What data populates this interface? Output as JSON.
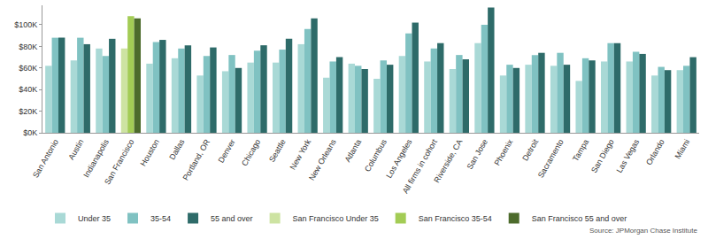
{
  "chart_data": {
    "type": "bar",
    "categories": [
      "San Antonio",
      "Austin",
      "Indianapolis",
      "San Francisco",
      "Houston",
      "Dallas",
      "Portland, OR",
      "Denver",
      "Chicago",
      "Seattle",
      "New York",
      "New Orleans",
      "Atlanta",
      "Columbus",
      "Los Angeles",
      "All firms in cohort",
      "Riverside, CA",
      "San Jose",
      "Phoenix",
      "Detroit",
      "Sacramento",
      "Tampa",
      "San Diego",
      "Las Vegas",
      "Orlando",
      "Miami"
    ],
    "series": [
      {
        "name": "Under 35",
        "color": "#a9d9d6",
        "values": [
          62,
          67,
          78,
          null,
          64,
          69,
          53,
          57,
          65,
          65,
          82,
          51,
          64,
          50,
          71,
          66,
          59,
          83,
          53,
          63,
          62,
          48,
          66,
          66,
          53,
          58
        ]
      },
      {
        "name": "35-54",
        "color": "#80c2c2",
        "values": [
          88,
          88,
          71,
          null,
          84,
          78,
          71,
          72,
          76,
          77,
          96,
          66,
          62,
          67,
          92,
          78,
          72,
          100,
          63,
          72,
          74,
          69,
          83,
          75,
          61,
          62
        ]
      },
      {
        "name": "55 and over",
        "color": "#2e6b69",
        "values": [
          88,
          82,
          87,
          null,
          86,
          81,
          79,
          60,
          81,
          87,
          106,
          70,
          59,
          63,
          102,
          83,
          68,
          116,
          60,
          74,
          63,
          67,
          83,
          73,
          58,
          70
        ]
      },
      {
        "name": "San Francisco Under 35",
        "color": "#cde3a2",
        "values": [
          null,
          null,
          null,
          78,
          null,
          null,
          null,
          null,
          null,
          null,
          null,
          null,
          null,
          null,
          null,
          null,
          null,
          null,
          null,
          null,
          null,
          null,
          null,
          null,
          null,
          null
        ]
      },
      {
        "name": "San Francisco 35-54",
        "color": "#a3cc55",
        "values": [
          null,
          null,
          null,
          108,
          null,
          null,
          null,
          null,
          null,
          null,
          null,
          null,
          null,
          null,
          null,
          null,
          null,
          null,
          null,
          null,
          null,
          null,
          null,
          null,
          null,
          null
        ]
      },
      {
        "name": "San Francisco 55 and over",
        "color": "#4d6b2c",
        "values": [
          null,
          null,
          null,
          106,
          null,
          null,
          null,
          null,
          null,
          null,
          null,
          null,
          null,
          null,
          null,
          null,
          null,
          null,
          null,
          null,
          null,
          null,
          null,
          null,
          null,
          null
        ]
      }
    ],
    "ylim": [
      0,
      118
    ],
    "yticks": [
      {
        "value": 0,
        "label": "$0K"
      },
      {
        "value": 20,
        "label": "$20K"
      },
      {
        "value": 40,
        "label": "$40K"
      },
      {
        "value": 60,
        "label": "$60K"
      },
      {
        "value": 80,
        "label": "$80K"
      },
      {
        "value": 100,
        "label": "$100K"
      }
    ],
    "grid": false,
    "legend": "bottom",
    "source": "Source: JPMorgan Chase Institute"
  }
}
